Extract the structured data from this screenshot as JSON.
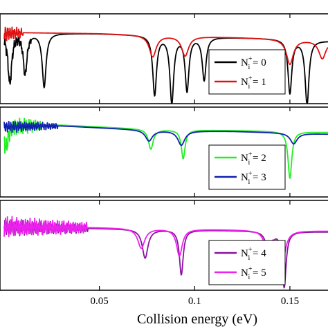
{
  "chart_data": {
    "type": "line",
    "xlabel": "Collision energy (eV)",
    "xlim": [
      0.0,
      0.17
    ],
    "x_ticks": [
      0.05,
      0.1,
      0.15
    ],
    "x_tick_labels": [
      "0.05",
      "0.1",
      "0.15"
    ],
    "colors": {
      "N0": "#000000",
      "N1": "#e01010",
      "N2": "#22ee22",
      "N3": "#1020b0",
      "N4": "#8a10a0",
      "N5": "#ee22ee"
    },
    "panels": [
      {
        "legend_position": "right",
        "legend": [
          {
            "key": "N0",
            "prefix": "N",
            "sup": "+",
            "sub": "i",
            "suffix": " = 0"
          },
          {
            "key": "N1",
            "prefix": "N",
            "sup": "+",
            "sub": "i",
            "suffix": " = 1"
          }
        ],
        "ylim": [
          0,
          1
        ],
        "series": [
          {
            "key": "N0",
            "baseline": [
              [
                0.0,
                0.78
              ],
              [
                0.01,
                0.79
              ],
              [
                0.05,
                0.78
              ],
              [
                0.1,
                0.75
              ],
              [
                0.15,
                0.72
              ],
              [
                0.17,
                0.7
              ]
            ],
            "dips": [
              {
                "x": 0.003,
                "depth": 0.55,
                "width": 0.0012
              },
              {
                "x": 0.011,
                "depth": 0.45,
                "width": 0.0012
              },
              {
                "x": 0.021,
                "depth": 0.6,
                "width": 0.0012
              },
              {
                "x": 0.079,
                "depth": 0.66,
                "width": 0.0012
              },
              {
                "x": 0.088,
                "depth": 0.74,
                "width": 0.0012
              },
              {
                "x": 0.096,
                "depth": 0.6,
                "width": 0.0012
              },
              {
                "x": 0.105,
                "depth": 0.48,
                "width": 0.0012
              },
              {
                "x": 0.15,
                "depth": 0.6,
                "width": 0.0012
              },
              {
                "x": 0.159,
                "depth": 0.72,
                "width": 0.0012
              }
            ],
            "noise": {
              "from": 0.0,
              "to": 0.014,
              "amp": 0.08
            }
          },
          {
            "key": "N1",
            "baseline": [
              [
                0.0,
                0.78
              ],
              [
                0.01,
                0.79
              ],
              [
                0.05,
                0.78
              ],
              [
                0.1,
                0.75
              ],
              [
                0.15,
                0.72
              ],
              [
                0.17,
                0.7
              ]
            ],
            "dips": [
              {
                "x": 0.078,
                "depth": 0.24,
                "width": 0.0022
              },
              {
                "x": 0.095,
                "depth": 0.22,
                "width": 0.0022
              },
              {
                "x": 0.15,
                "depth": 0.28,
                "width": 0.0022
              },
              {
                "x": 0.167,
                "depth": 0.2,
                "width": 0.0022
              }
            ],
            "noise": {
              "from": 0.0,
              "to": 0.01,
              "amp": 0.1
            }
          }
        ]
      },
      {
        "legend_position": "right",
        "legend": [
          {
            "key": "N2",
            "prefix": "N",
            "sup": "+",
            "sub": "i",
            "suffix": " = 2"
          },
          {
            "key": "N3",
            "prefix": "N",
            "sup": "+",
            "sub": "i",
            "suffix": " = 3"
          }
        ],
        "ylim": [
          0,
          1
        ],
        "series": [
          {
            "key": "N2",
            "baseline": [
              [
                0.0,
                0.79
              ],
              [
                0.03,
                0.8
              ],
              [
                0.08,
                0.75
              ],
              [
                0.12,
                0.74
              ],
              [
                0.17,
                0.72
              ]
            ],
            "dips": [
              {
                "x": 0.001,
                "depth": 0.25,
                "width": 0.0012
              },
              {
                "x": 0.077,
                "depth": 0.22,
                "width": 0.0015
              },
              {
                "x": 0.094,
                "depth": 0.32,
                "width": 0.0012
              },
              {
                "x": 0.15,
                "depth": 0.52,
                "width": 0.0012
              }
            ],
            "noise": {
              "from": 0.0,
              "to": 0.02,
              "amp": 0.12
            }
          },
          {
            "key": "N3",
            "baseline": [
              [
                0.0,
                0.78
              ],
              [
                0.03,
                0.79
              ],
              [
                0.08,
                0.74
              ],
              [
                0.12,
                0.73
              ],
              [
                0.17,
                0.7
              ]
            ],
            "dips": [
              {
                "x": 0.076,
                "depth": 0.12,
                "width": 0.0022
              },
              {
                "x": 0.093,
                "depth": 0.16,
                "width": 0.0022
              },
              {
                "x": 0.152,
                "depth": 0.12,
                "width": 0.0022
              }
            ],
            "noise": {
              "from": 0.0,
              "to": 0.028,
              "amp": 0.07
            }
          }
        ]
      },
      {
        "legend_position": "right",
        "legend": [
          {
            "key": "N4",
            "prefix": "N",
            "sup": "+",
            "sub": "i",
            "suffix": " = 4"
          },
          {
            "key": "N5",
            "prefix": "N",
            "sup": "+",
            "sub": "i",
            "suffix": " = 5"
          }
        ],
        "ylim": [
          0,
          1
        ],
        "series": [
          {
            "key": "N4",
            "baseline": [
              [
                0.0,
                0.7
              ],
              [
                0.04,
                0.69
              ],
              [
                0.1,
                0.67
              ],
              [
                0.17,
                0.65
              ]
            ],
            "dips": [
              {
                "x": 0.074,
                "depth": 0.32,
                "width": 0.0018
              },
              {
                "x": 0.093,
                "depth": 0.5,
                "width": 0.0012
              },
              {
                "x": 0.139,
                "depth": 0.3,
                "width": 0.0015
              },
              {
                "x": 0.147,
                "depth": 0.62,
                "width": 0.0012
              }
            ],
            "noise": {
              "from": 0.0,
              "to": 0.044,
              "amp": 0.1
            }
          },
          {
            "key": "N5",
            "baseline": [
              [
                0.0,
                0.71
              ],
              [
                0.04,
                0.7
              ],
              [
                0.1,
                0.68
              ],
              [
                0.17,
                0.66
              ]
            ],
            "dips": [
              {
                "x": 0.072,
                "depth": 0.22,
                "width": 0.0022
              },
              {
                "x": 0.092,
                "depth": 0.3,
                "width": 0.0018
              },
              {
                "x": 0.138,
                "depth": 0.2,
                "width": 0.002
              },
              {
                "x": 0.146,
                "depth": 0.35,
                "width": 0.002
              }
            ],
            "noise": {
              "from": 0.0,
              "to": 0.044,
              "amp": 0.12
            }
          }
        ]
      }
    ]
  }
}
